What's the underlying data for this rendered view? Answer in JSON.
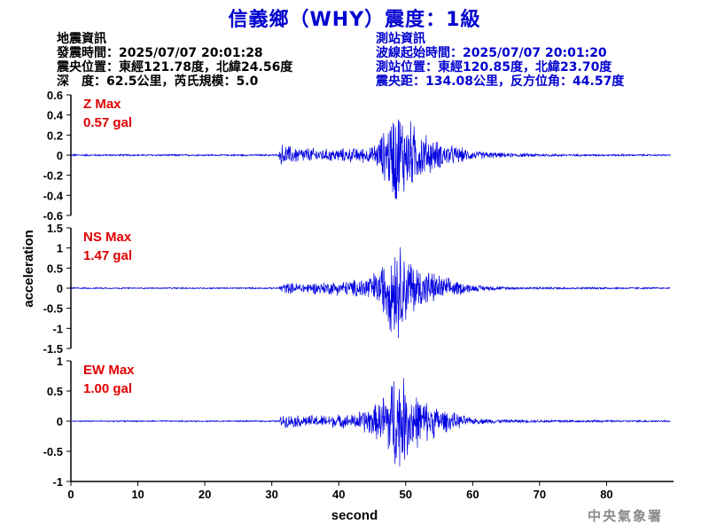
{
  "title": "信義鄉（WHY）震度：1級",
  "quake_info": {
    "heading": "地震資訊",
    "time": "發震時間：2025/07/07 20:01:28",
    "epicenter": "震央位置：東經121.78度，北緯24.56度",
    "depth_mag": "深　度：62.5公里，芮氏規模：5.0"
  },
  "station_info": {
    "heading": "測站資訊",
    "wave_start": "波線起始時間：2025/07/07 20:01:20",
    "location": "測站位置：東經120.85度，北緯23.70度",
    "distance": "震央距：134.08公里，反方位角：44.57度"
  },
  "credit": "中央氣象署",
  "colors": {
    "title": "#0000d0",
    "trace": "#0000e0",
    "max_label": "#e00000",
    "info_right": "#0000d0"
  },
  "chart_data": {
    "type": "line",
    "xlabel": "second",
    "ylabel": "acceleration",
    "xlim": [
      0,
      90
    ],
    "x_ticks": [
      0,
      10,
      20,
      30,
      40,
      50,
      60,
      70,
      80
    ],
    "panels": [
      {
        "name": "Z",
        "max_label": "Z Max",
        "max_value": "0.57 gal",
        "ylim": [
          -0.6,
          0.6
        ],
        "y_ticks": [
          0.6,
          0.4,
          0.2,
          0,
          -0.2,
          -0.4,
          -0.6
        ],
        "noise_level": 0.008,
        "envelope": [
          [
            0,
            0.01
          ],
          [
            31,
            0.01
          ],
          [
            31.5,
            0.13
          ],
          [
            33,
            0.1
          ],
          [
            38,
            0.07
          ],
          [
            45,
            0.09
          ],
          [
            47,
            0.3
          ],
          [
            48.5,
            0.57
          ],
          [
            50,
            0.45
          ],
          [
            52,
            0.28
          ],
          [
            55,
            0.15
          ],
          [
            60,
            0.05
          ],
          [
            65,
            0.025
          ],
          [
            75,
            0.012
          ],
          [
            90,
            0.01
          ]
        ]
      },
      {
        "name": "NS",
        "max_label": "NS Max",
        "max_value": "1.47 gal",
        "ylim": [
          -1.5,
          1.5
        ],
        "y_ticks": [
          1.5,
          1,
          0.5,
          0,
          -0.5,
          -1,
          -1.5
        ],
        "noise_level": 0.02,
        "envelope": [
          [
            0,
            0.02
          ],
          [
            31,
            0.02
          ],
          [
            31.5,
            0.15
          ],
          [
            35,
            0.15
          ],
          [
            42,
            0.22
          ],
          [
            46,
            0.5
          ],
          [
            48.5,
            1.47
          ],
          [
            50,
            1.0
          ],
          [
            52,
            0.6
          ],
          [
            56,
            0.3
          ],
          [
            60,
            0.1
          ],
          [
            65,
            0.04
          ],
          [
            90,
            0.02
          ]
        ]
      },
      {
        "name": "EW",
        "max_label": "EW Max",
        "max_value": "1.00 gal",
        "ylim": [
          -1,
          1
        ],
        "y_ticks": [
          1,
          0.5,
          0,
          -0.5,
          -1
        ],
        "noise_level": 0.012,
        "envelope": [
          [
            0,
            0.012
          ],
          [
            31,
            0.012
          ],
          [
            31.5,
            0.12
          ],
          [
            35,
            0.11
          ],
          [
            42,
            0.13
          ],
          [
            46,
            0.35
          ],
          [
            48.5,
            1.0
          ],
          [
            50,
            0.75
          ],
          [
            52,
            0.45
          ],
          [
            56,
            0.2
          ],
          [
            60,
            0.06
          ],
          [
            65,
            0.03
          ],
          [
            90,
            0.015
          ]
        ]
      }
    ]
  }
}
